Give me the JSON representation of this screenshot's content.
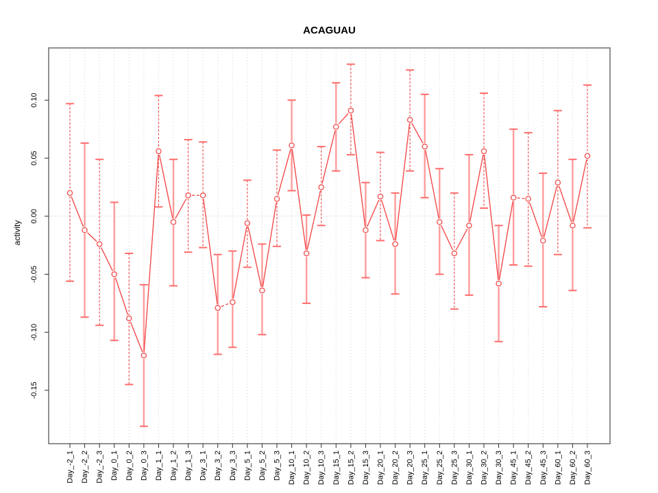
{
  "figure": {
    "background": "#ffffff"
  },
  "chart_data": {
    "type": "line",
    "title": "ACAGUAU",
    "ylabel": "activity",
    "xlabel": "",
    "legend": "none",
    "grid": "vertical dotted gridline at every category; single horizontal dotted line at y=0",
    "categories": [
      "Day_-2_1",
      "Day_-2_2",
      "Day_-2_3",
      "Day_0_1",
      "Day_0_2",
      "Day_0_3",
      "Day_1_1",
      "Day_1_2",
      "Day_1_3",
      "Day_3_1",
      "Day_3_2",
      "Day_3_3",
      "Day_5_1",
      "Day_5_2",
      "Day_5_3",
      "Day_10_1",
      "Day_10_2",
      "Day_10_3",
      "Day_15_1",
      "Day_15_2",
      "Day_15_3",
      "Day_20_1",
      "Day_20_2",
      "Day_20_3",
      "Day_25_1",
      "Day_25_2",
      "Day_25_3",
      "Day_30_1",
      "Day_30_2",
      "Day_30_3",
      "Day_45_1",
      "Day_45_2",
      "Day_45_3",
      "Day_60_1",
      "Day_60_2",
      "Day_60_3"
    ],
    "series": [
      {
        "name": "activity",
        "values": [
          0.02,
          -0.012,
          -0.024,
          -0.05,
          -0.088,
          -0.12,
          0.056,
          -0.005,
          0.018,
          0.018,
          -0.079,
          -0.074,
          -0.006,
          -0.064,
          0.015,
          0.061,
          -0.032,
          0.025,
          0.077,
          0.091,
          -0.012,
          0.017,
          -0.024,
          0.083,
          0.06,
          -0.005,
          -0.032,
          -0.008,
          0.056,
          -0.058,
          0.016,
          0.015,
          -0.021,
          0.029,
          -0.008,
          0.052
        ],
        "error_low": [
          -0.056,
          -0.087,
          -0.094,
          -0.107,
          -0.145,
          -0.181,
          0.008,
          -0.06,
          -0.031,
          -0.027,
          -0.119,
          -0.113,
          -0.044,
          -0.102,
          -0.026,
          0.022,
          -0.075,
          -0.008,
          0.039,
          0.053,
          -0.053,
          -0.021,
          -0.067,
          0.039,
          0.016,
          -0.05,
          -0.08,
          -0.068,
          0.007,
          -0.108,
          -0.042,
          -0.043,
          -0.078,
          -0.033,
          -0.064,
          -0.01
        ],
        "error_high": [
          0.097,
          0.063,
          0.049,
          0.012,
          -0.032,
          -0.059,
          0.104,
          0.049,
          0.066,
          0.064,
          -0.033,
          -0.03,
          0.031,
          -0.024,
          0.057,
          0.1,
          0.001,
          0.06,
          0.115,
          0.131,
          0.029,
          0.055,
          0.02,
          0.126,
          0.105,
          0.041,
          0.02,
          0.053,
          0.106,
          -0.008,
          0.075,
          0.072,
          0.037,
          0.091,
          0.049,
          0.113
        ]
      }
    ],
    "yticks": [
      {
        "label": "0.10",
        "value": 0.1
      },
      {
        "label": "0.05",
        "value": 0.05
      },
      {
        "label": "0.00",
        "value": 0.0
      },
      {
        "label": "-0.05",
        "value": -0.05
      },
      {
        "label": "-0.10",
        "value": -0.1
      },
      {
        "label": "-0.15",
        "value": -0.15
      }
    ],
    "ylim": [
      -0.196,
      0.145
    ],
    "stem_styles": [
      "dashed",
      "solid",
      "dashed",
      "solid",
      "dashed",
      "solid",
      "dashed",
      "solid",
      "dashed",
      "dashed",
      "solid",
      "solid",
      "dashed",
      "solid",
      "dashed",
      "solid",
      "solid",
      "dashed",
      "solid",
      "dashed",
      "solid",
      "dashed",
      "solid",
      "dashed",
      "solid",
      "solid",
      "dashed",
      "solid",
      "dashed",
      "solid",
      "solid",
      "dashed",
      "solid",
      "dashed",
      "solid",
      "dashed"
    ],
    "dashed_segments": [
      8,
      10,
      30
    ],
    "colors": {
      "line": "#f34b4b",
      "marker": "#f34b4b",
      "stem_solid": "#ff9b9b",
      "stem_dashed": "#f05050",
      "cap": "#ff6b6b",
      "grid": "#dcdcdc",
      "zero_line": "#d2d2d2",
      "box": "#757575",
      "tick": "#2b2b2b",
      "text": "#000000"
    }
  }
}
